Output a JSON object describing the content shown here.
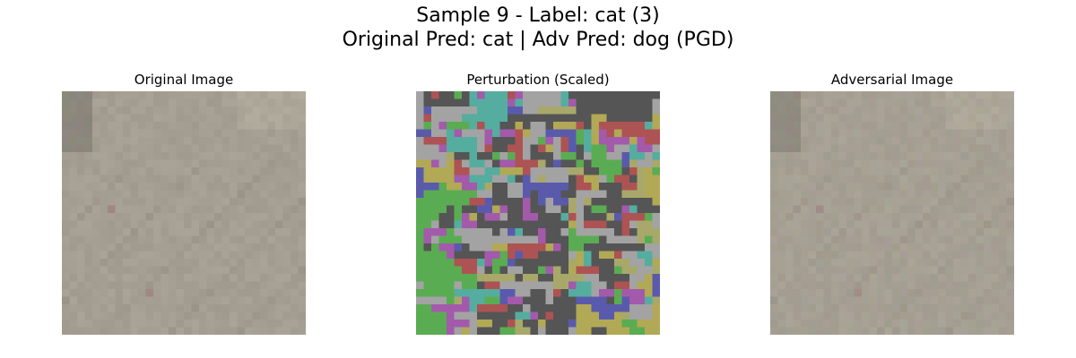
{
  "figure": {
    "title_line1": "Sample 9 - Label: cat (3)",
    "title_line2": "Original Pred: cat | Adv Pred: dog (PGD)"
  },
  "panels": [
    {
      "title": "Original Image",
      "kind": "original"
    },
    {
      "title": "Perturbation (Scaled)",
      "kind": "perturbation"
    },
    {
      "title": "Adversarial Image",
      "kind": "adversarial"
    }
  ],
  "image_grid": {
    "rows": 32,
    "cols": 32
  },
  "colors": {
    "original_base": "#a59f93",
    "original_dark": "#8c877d",
    "original_light": "#b3ad9f",
    "adversarial_tint": "#a8a394",
    "pert_gray": "#a3a3a3",
    "pert_dark": "#555555",
    "pert_green": "#5aac52",
    "pert_olive": "#b1a955",
    "pert_teal": "#55ad9f",
    "pert_blue": "#5a5aad",
    "pert_purple": "#a35aab",
    "pert_red": "#ad5353",
    "pert_khaki": "#a8a86a"
  }
}
